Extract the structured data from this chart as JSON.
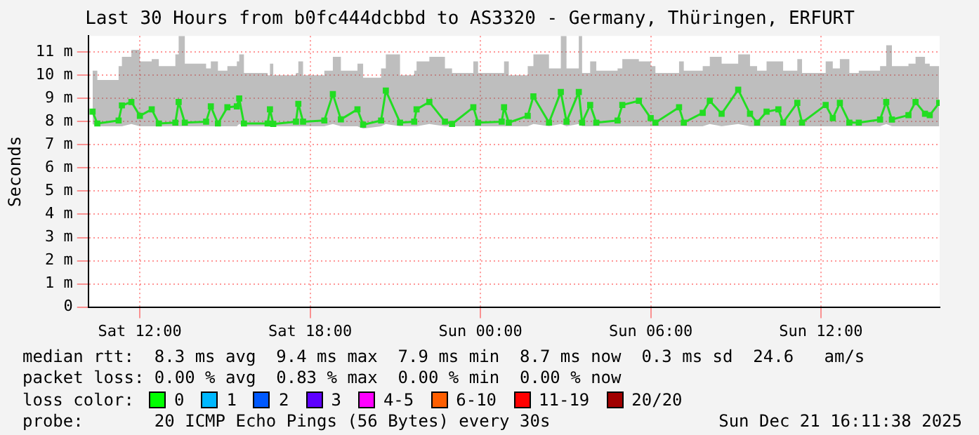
{
  "chart_data": {
    "type": "line",
    "title": "Last 30 Hours from b0fc444dcbbd to AS3320 - Germany, Thüringen, ERFURT",
    "ylabel": "Seconds",
    "xlim": [
      "2025-12-20T10:11",
      "2025-12-21T16:11"
    ],
    "xticks": [
      {
        "value": "2025-12-20T12:00",
        "label": "Sat 12:00"
      },
      {
        "value": "2025-12-20T18:00",
        "label": "Sat 18:00"
      },
      {
        "value": "2025-12-21T00:00",
        "label": "Sun 00:00"
      },
      {
        "value": "2025-12-21T06:00",
        "label": "Sun 06:00"
      },
      {
        "value": "2025-12-21T12:00",
        "label": "Sun 12:00"
      }
    ],
    "ylim": [
      0,
      11.7
    ],
    "yticks": [
      {
        "value": 0,
        "label": "0"
      },
      {
        "value": 1,
        "label": "1 m"
      },
      {
        "value": 2,
        "label": "2 m"
      },
      {
        "value": 3,
        "label": "3 m"
      },
      {
        "value": 4,
        "label": "4 m"
      },
      {
        "value": 5,
        "label": "5 m"
      },
      {
        "value": 6,
        "label": "6 m"
      },
      {
        "value": 7,
        "label": "7 m"
      },
      {
        "value": 8,
        "label": "8 m"
      },
      {
        "value": 9,
        "label": "9 m"
      },
      {
        "value": 10,
        "label": "10 m"
      },
      {
        "value": 11,
        "label": "11 m"
      }
    ],
    "grid": true,
    "legend": false,
    "marker": "square",
    "line_style": "solid",
    "series": [
      {
        "color": "#22dd22",
        "x": [
          "2025-12-20T10:20",
          "2025-12-20T10:30",
          "2025-12-20T11:15",
          "2025-12-20T11:22",
          "2025-12-20T11:42",
          "2025-12-20T12:00",
          "2025-12-20T12:25",
          "2025-12-20T12:40",
          "2025-12-20T13:15",
          "2025-12-20T13:22",
          "2025-12-20T13:35",
          "2025-12-20T14:20",
          "2025-12-20T14:30",
          "2025-12-20T14:45",
          "2025-12-20T15:05",
          "2025-12-20T15:25",
          "2025-12-20T15:30",
          "2025-12-20T15:40",
          "2025-12-20T16:30",
          "2025-12-20T16:35",
          "2025-12-20T16:42",
          "2025-12-20T17:30",
          "2025-12-20T17:35",
          "2025-12-20T17:45",
          "2025-12-20T18:30",
          "2025-12-20T18:48",
          "2025-12-20T19:05",
          "2025-12-20T19:40",
          "2025-12-20T19:52",
          "2025-12-20T20:30",
          "2025-12-20T20:40",
          "2025-12-20T21:10",
          "2025-12-20T21:40",
          "2025-12-20T21:45",
          "2025-12-20T22:12",
          "2025-12-20T22:45",
          "2025-12-20T23:00",
          "2025-12-20T23:45",
          "2025-12-20T23:55",
          "2025-12-21T00:45",
          "2025-12-21T00:50",
          "2025-12-21T01:00",
          "2025-12-21T01:40",
          "2025-12-21T01:52",
          "2025-12-21T02:25",
          "2025-12-21T02:50",
          "2025-12-21T03:02",
          "2025-12-21T03:28",
          "2025-12-21T03:35",
          "2025-12-21T03:52",
          "2025-12-21T04:05",
          "2025-12-21T04:50",
          "2025-12-21T05:00",
          "2025-12-21T05:35",
          "2025-12-21T06:00",
          "2025-12-21T06:10",
          "2025-12-21T07:00",
          "2025-12-21T07:10",
          "2025-12-21T07:50",
          "2025-12-21T08:05",
          "2025-12-21T08:30",
          "2025-12-21T09:05",
          "2025-12-21T09:30",
          "2025-12-21T09:45",
          "2025-12-21T10:05",
          "2025-12-21T10:30",
          "2025-12-21T10:40",
          "2025-12-21T11:10",
          "2025-12-21T11:20",
          "2025-12-21T12:10",
          "2025-12-21T12:25",
          "2025-12-21T12:40",
          "2025-12-21T13:00",
          "2025-12-21T13:20",
          "2025-12-21T14:05",
          "2025-12-21T14:18",
          "2025-12-21T14:30",
          "2025-12-21T15:05",
          "2025-12-21T15:20",
          "2025-12-21T15:40",
          "2025-12-21T15:50",
          "2025-12-21T16:10"
        ],
        "values": [
          8.43,
          7.92,
          8.05,
          8.7,
          8.85,
          8.25,
          8.53,
          7.92,
          7.96,
          8.85,
          7.96,
          8.0,
          8.66,
          7.92,
          8.62,
          8.66,
          9.0,
          7.92,
          7.92,
          8.53,
          7.9,
          8.0,
          8.77,
          8.0,
          8.05,
          9.19,
          8.1,
          8.53,
          7.87,
          8.05,
          9.34,
          7.96,
          8.0,
          8.53,
          8.85,
          8.0,
          7.9,
          8.62,
          7.96,
          8.0,
          8.62,
          7.96,
          8.25,
          9.09,
          7.96,
          9.28,
          8.0,
          9.28,
          7.96,
          8.72,
          7.96,
          8.05,
          8.72,
          8.9,
          8.15,
          7.96,
          8.62,
          7.96,
          8.38,
          8.9,
          8.34,
          9.38,
          8.34,
          7.96,
          8.43,
          8.53,
          7.96,
          8.81,
          7.96,
          8.72,
          8.15,
          8.81,
          7.96,
          7.96,
          8.09,
          8.85,
          8.09,
          8.28,
          8.85,
          8.34,
          8.28,
          8.81
        ],
        "lower": [
          7.9,
          7.8,
          7.8,
          7.8,
          7.9,
          7.8,
          7.8,
          7.8,
          7.8,
          7.8,
          7.8,
          7.8,
          7.8,
          7.8,
          7.8,
          7.8,
          7.9,
          7.8,
          7.8,
          7.8,
          7.8,
          7.8,
          7.8,
          7.8,
          7.8,
          7.9,
          7.8,
          7.8,
          7.7,
          7.8,
          7.9,
          7.8,
          7.8,
          7.8,
          7.9,
          7.8,
          7.8,
          7.8,
          7.8,
          7.8,
          7.8,
          7.8,
          7.8,
          7.9,
          7.8,
          7.9,
          7.8,
          7.9,
          7.8,
          7.8,
          7.8,
          7.8,
          7.8,
          7.8,
          7.8,
          7.8,
          7.8,
          7.8,
          7.8,
          7.9,
          7.8,
          7.9,
          7.8,
          7.8,
          7.8,
          7.8,
          7.8,
          7.8,
          7.8,
          7.8,
          7.8,
          7.8,
          7.8,
          7.8,
          7.8,
          7.9,
          7.8,
          7.8,
          7.8,
          7.8,
          7.8,
          7.8
        ],
        "upper": [
          10.2,
          9.8,
          10.4,
          10.8,
          11.1,
          10.6,
          10.7,
          10.4,
          10.9,
          11.7,
          10.5,
          10.3,
          10.6,
          10.2,
          10.4,
          10.6,
          10.9,
          10.1,
          10.0,
          10.5,
          10.0,
          10.1,
          10.6,
          10.0,
          10.2,
          10.8,
          10.2,
          10.5,
          9.9,
          10.3,
          10.9,
          10.0,
          10.2,
          10.6,
          10.8,
          10.3,
          10.1,
          10.6,
          10.1,
          10.1,
          10.6,
          10.0,
          10.4,
          10.9,
          10.3,
          11.7,
          10.3,
          11.7,
          10.1,
          10.6,
          10.2,
          10.3,
          10.7,
          10.6,
          10.4,
          10.1,
          10.6,
          10.2,
          10.4,
          10.8,
          10.5,
          10.9,
          10.4,
          10.2,
          10.6,
          10.6,
          10.2,
          10.7,
          10.1,
          10.6,
          10.3,
          10.7,
          10.1,
          10.2,
          10.4,
          11.3,
          10.4,
          10.5,
          10.8,
          10.5,
          10.4,
          10.6
        ]
      }
    ],
    "annotations": [
      "median rtt:  8.3 ms avg  9.4 ms max  7.9 ms min  8.7 ms now  0.3 ms sd  24.6   am/s",
      "packet loss: 0.00 % avg  0.83 % max  0.00 % min  0.00 % now",
      "loss color:",
      "0",
      "1",
      "2",
      "3",
      "4-5",
      "6-10",
      "11-19",
      "20/20",
      "probe:       20 ICMP Echo Pings (56 Bytes) every 30s",
      "Sun Dec 21 16:11:38 2025"
    ]
  }
}
